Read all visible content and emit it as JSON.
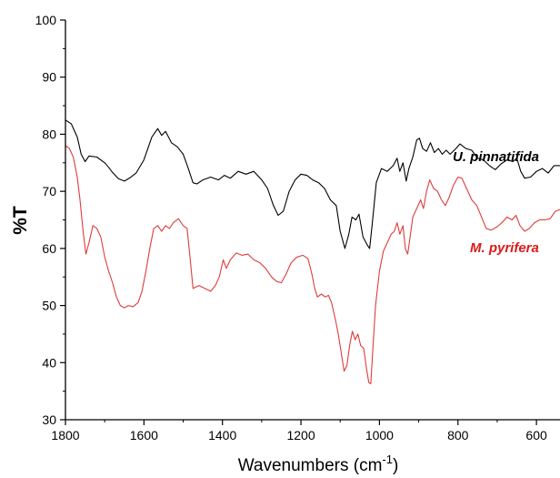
{
  "chart_data": {
    "type": "line",
    "xlabel": "Wavenumbers (cm",
    "xlabel_sup": "-1",
    "xlabel_close": ")",
    "ylabel": "%T",
    "xlim": [
      1800,
      540
    ],
    "ylim": [
      30,
      100
    ],
    "x_reversed": true,
    "x_ticks": [
      1800,
      1600,
      1400,
      1200,
      1000,
      800,
      600
    ],
    "y_ticks": [
      30,
      40,
      50,
      60,
      70,
      80,
      90,
      100
    ],
    "grid": false,
    "series": [
      {
        "name": "U. pinnatifida",
        "color": "#000000",
        "label_color": "#000000",
        "points": [
          [
            1800,
            82.5
          ],
          [
            1785,
            81.8
          ],
          [
            1770,
            79.5
          ],
          [
            1760,
            76.5
          ],
          [
            1750,
            75.2
          ],
          [
            1740,
            76.2
          ],
          [
            1720,
            76.0
          ],
          [
            1700,
            75.0
          ],
          [
            1690,
            74.2
          ],
          [
            1680,
            73.3
          ],
          [
            1665,
            72.2
          ],
          [
            1650,
            71.8
          ],
          [
            1635,
            72.4
          ],
          [
            1620,
            73.2
          ],
          [
            1600,
            75.5
          ],
          [
            1580,
            79.5
          ],
          [
            1565,
            81.0
          ],
          [
            1555,
            79.8
          ],
          [
            1545,
            80.5
          ],
          [
            1530,
            78.5
          ],
          [
            1515,
            77.8
          ],
          [
            1500,
            76.5
          ],
          [
            1488,
            74.2
          ],
          [
            1475,
            71.5
          ],
          [
            1465,
            71.3
          ],
          [
            1450,
            72.0
          ],
          [
            1430,
            72.5
          ],
          [
            1410,
            72.0
          ],
          [
            1395,
            72.8
          ],
          [
            1380,
            72.3
          ],
          [
            1360,
            73.5
          ],
          [
            1340,
            73.0
          ],
          [
            1320,
            73.5
          ],
          [
            1300,
            72.0
          ],
          [
            1285,
            70.5
          ],
          [
            1270,
            67.5
          ],
          [
            1258,
            65.8
          ],
          [
            1245,
            66.5
          ],
          [
            1230,
            70.0
          ],
          [
            1215,
            72.0
          ],
          [
            1200,
            73.0
          ],
          [
            1185,
            72.8
          ],
          [
            1170,
            72.0
          ],
          [
            1155,
            71.5
          ],
          [
            1140,
            70.5
          ],
          [
            1125,
            68.5
          ],
          [
            1110,
            67.5
          ],
          [
            1100,
            63.0
          ],
          [
            1088,
            60.0
          ],
          [
            1078,
            62.5
          ],
          [
            1070,
            65.5
          ],
          [
            1060,
            65.0
          ],
          [
            1052,
            66.0
          ],
          [
            1042,
            62.0
          ],
          [
            1030,
            60.5
          ],
          [
            1025,
            60.0
          ],
          [
            1018,
            64.5
          ],
          [
            1008,
            71.5
          ],
          [
            995,
            74.0
          ],
          [
            980,
            73.5
          ],
          [
            965,
            74.5
          ],
          [
            955,
            75.8
          ],
          [
            948,
            73.5
          ],
          [
            940,
            75.0
          ],
          [
            932,
            71.8
          ],
          [
            925,
            74.0
          ],
          [
            915,
            76.0
          ],
          [
            905,
            79.0
          ],
          [
            898,
            79.3
          ],
          [
            890,
            77.5
          ],
          [
            880,
            77.0
          ],
          [
            870,
            78.5
          ],
          [
            860,
            76.8
          ],
          [
            850,
            77.5
          ],
          [
            840,
            76.5
          ],
          [
            830,
            77.2
          ],
          [
            820,
            76.5
          ],
          [
            805,
            77.5
          ],
          [
            795,
            78.3
          ],
          [
            780,
            77.5
          ],
          [
            765,
            77.2
          ],
          [
            750,
            75.8
          ],
          [
            735,
            75.5
          ],
          [
            720,
            74.5
          ],
          [
            705,
            73.8
          ],
          [
            690,
            74.8
          ],
          [
            675,
            75.5
          ],
          [
            660,
            75.2
          ],
          [
            650,
            75.8
          ],
          [
            640,
            73.5
          ],
          [
            630,
            72.3
          ],
          [
            615,
            72.5
          ],
          [
            600,
            73.5
          ],
          [
            585,
            74.0
          ],
          [
            570,
            73.2
          ],
          [
            555,
            74.5
          ],
          [
            540,
            74.5
          ]
        ]
      },
      {
        "name": "M. pyrifera",
        "color": "#e03c3c",
        "label_color": "#dd1a1a",
        "points": [
          [
            1800,
            78.0
          ],
          [
            1790,
            77.5
          ],
          [
            1780,
            76.0
          ],
          [
            1770,
            72.5
          ],
          [
            1763,
            68.5
          ],
          [
            1755,
            63.0
          ],
          [
            1748,
            59.0
          ],
          [
            1740,
            61.0
          ],
          [
            1730,
            64.0
          ],
          [
            1720,
            63.5
          ],
          [
            1710,
            62.0
          ],
          [
            1700,
            58.5
          ],
          [
            1690,
            56.0
          ],
          [
            1680,
            54.0
          ],
          [
            1670,
            51.5
          ],
          [
            1660,
            50.0
          ],
          [
            1650,
            49.6
          ],
          [
            1640,
            50.0
          ],
          [
            1628,
            49.8
          ],
          [
            1615,
            50.5
          ],
          [
            1605,
            52.5
          ],
          [
            1595,
            56.0
          ],
          [
            1585,
            60.0
          ],
          [
            1575,
            63.5
          ],
          [
            1565,
            64.0
          ],
          [
            1555,
            63.0
          ],
          [
            1545,
            64.0
          ],
          [
            1535,
            63.5
          ],
          [
            1525,
            64.5
          ],
          [
            1512,
            65.2
          ],
          [
            1500,
            64.0
          ],
          [
            1490,
            63.5
          ],
          [
            1482,
            58.0
          ],
          [
            1475,
            53.0
          ],
          [
            1460,
            53.5
          ],
          [
            1445,
            53.0
          ],
          [
            1430,
            52.5
          ],
          [
            1418,
            53.5
          ],
          [
            1408,
            55.0
          ],
          [
            1398,
            58.0
          ],
          [
            1390,
            56.5
          ],
          [
            1380,
            58.0
          ],
          [
            1365,
            59.2
          ],
          [
            1350,
            58.8
          ],
          [
            1335,
            59.0
          ],
          [
            1320,
            58.0
          ],
          [
            1305,
            57.5
          ],
          [
            1290,
            56.5
          ],
          [
            1275,
            55.0
          ],
          [
            1262,
            54.2
          ],
          [
            1250,
            54.0
          ],
          [
            1238,
            55.5
          ],
          [
            1225,
            57.5
          ],
          [
            1210,
            58.5
          ],
          [
            1195,
            58.8
          ],
          [
            1182,
            58.2
          ],
          [
            1172,
            55.5
          ],
          [
            1165,
            53.0
          ],
          [
            1158,
            51.5
          ],
          [
            1148,
            52.0
          ],
          [
            1138,
            51.5
          ],
          [
            1130,
            51.8
          ],
          [
            1122,
            50.5
          ],
          [
            1112,
            47.5
          ],
          [
            1105,
            45.0
          ],
          [
            1098,
            42.0
          ],
          [
            1090,
            38.5
          ],
          [
            1083,
            39.5
          ],
          [
            1076,
            43.0
          ],
          [
            1069,
            45.5
          ],
          [
            1062,
            44.0
          ],
          [
            1055,
            45.0
          ],
          [
            1048,
            43.0
          ],
          [
            1040,
            42.5
          ],
          [
            1033,
            39.0
          ],
          [
            1027,
            36.5
          ],
          [
            1022,
            36.3
          ],
          [
            1018,
            41.0
          ],
          [
            1010,
            50.0
          ],
          [
            1000,
            56.0
          ],
          [
            990,
            59.5
          ],
          [
            980,
            61.0
          ],
          [
            970,
            62.5
          ],
          [
            962,
            63.0
          ],
          [
            955,
            64.5
          ],
          [
            948,
            62.5
          ],
          [
            940,
            64.0
          ],
          [
            934,
            60.0
          ],
          [
            928,
            59.0
          ],
          [
            922,
            62.0
          ],
          [
            915,
            65.5
          ],
          [
            905,
            67.0
          ],
          [
            895,
            68.5
          ],
          [
            888,
            67.0
          ],
          [
            880,
            70.0
          ],
          [
            872,
            72.0
          ],
          [
            862,
            70.5
          ],
          [
            852,
            70.0
          ],
          [
            842,
            68.5
          ],
          [
            832,
            67.5
          ],
          [
            822,
            69.0
          ],
          [
            812,
            71.0
          ],
          [
            800,
            72.5
          ],
          [
            790,
            72.3
          ],
          [
            778,
            70.5
          ],
          [
            765,
            68.5
          ],
          [
            752,
            67.5
          ],
          [
            740,
            65.5
          ],
          [
            728,
            63.5
          ],
          [
            715,
            63.2
          ],
          [
            700,
            63.8
          ],
          [
            688,
            64.5
          ],
          [
            675,
            65.5
          ],
          [
            662,
            65.0
          ],
          [
            652,
            65.8
          ],
          [
            642,
            64.0
          ],
          [
            630,
            63.0
          ],
          [
            618,
            63.5
          ],
          [
            605,
            64.5
          ],
          [
            592,
            65.0
          ],
          [
            578,
            65.0
          ],
          [
            565,
            65.2
          ],
          [
            552,
            66.5
          ],
          [
            540,
            66.8
          ]
        ]
      }
    ]
  }
}
